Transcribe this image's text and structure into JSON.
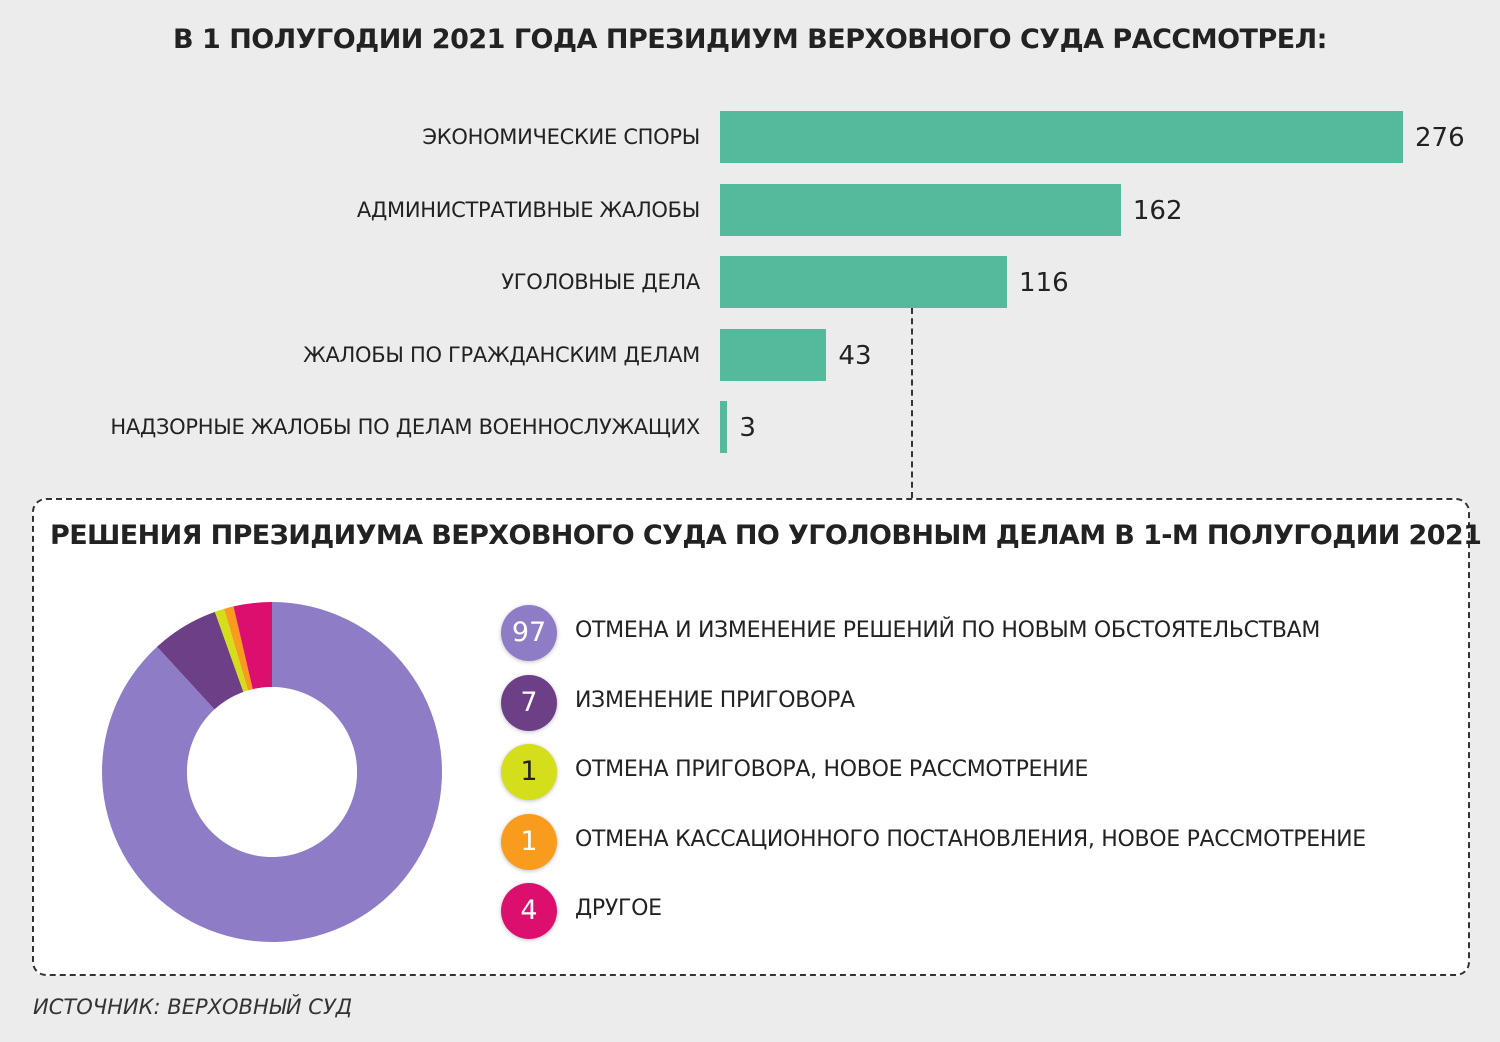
{
  "chart_data": [
    {
      "type": "bar",
      "orientation": "horizontal",
      "title": "В 1 ПОЛУГОДИИ 2021 ГОДА ПРЕЗИДИУМ ВЕРХОВНОГО СУДА РАССМОТРЕЛ:",
      "categories": [
        "ЭКОНОМИЧЕСКИЕ СПОРЫ",
        "АДМИНИСТРАТИВНЫЕ ЖАЛОБЫ",
        "УГОЛОВНЫЕ ДЕЛА",
        "ЖАЛОБЫ ПО ГРАЖДАНСКИМ ДЕЛАМ",
        "НАДЗОРНЫЕ ЖАЛОБЫ ПО ДЕЛАМ ВОЕННОСЛУЖАЩИХ"
      ],
      "values": [
        276,
        162,
        116,
        43,
        3
      ],
      "color": "#55b99b",
      "grid": false
    },
    {
      "type": "pie",
      "donut": true,
      "title": "РЕШЕНИЯ ПРЕЗИДИУМА ВЕРХОВНОГО СУДА ПО УГОЛОВНЫМ ДЕЛАМ В 1-М ПОЛУГОДИИ 2021",
      "slices": [
        {
          "label": "ОТМЕНА И ИЗМЕНЕНИЕ РЕШЕНИЙ ПО НОВЫМ ОБСТОЯТЕЛЬСТВАМ",
          "value": 97,
          "display": "97",
          "color": "#8f7cc7",
          "text_color": "#ffffff"
        },
        {
          "label": "ИЗМЕНЕНИЕ ПРИГОВОРА",
          "value": 7,
          "display": "7",
          "color": "#6c3f86",
          "text_color": "#ffffff"
        },
        {
          "label": "ОТМЕНА ПРИГОВОРА, НОВОЕ РАССМОТРЕНИЕ",
          "value": 1,
          "display": "1",
          "color": "#d4de1b",
          "text_color": "#222222"
        },
        {
          "label": "ОТМЕНА КАССАЦИОННОГО ПОСТАНОВЛЕНИЯ, НОВОЕ РАССМОТРЕНИЕ",
          "value": 1,
          "display": "1",
          "color": "#f99b1c",
          "text_color": "#ffffff"
        },
        {
          "label": "ДРУГОЕ",
          "value": 4,
          "display": "4",
          "color": "#dc0f6e",
          "text_color": "#ffffff"
        }
      ],
      "legend": "right"
    }
  ],
  "source": "ИСТОЧНИК: ВЕРХОВНЫЙ СУД"
}
